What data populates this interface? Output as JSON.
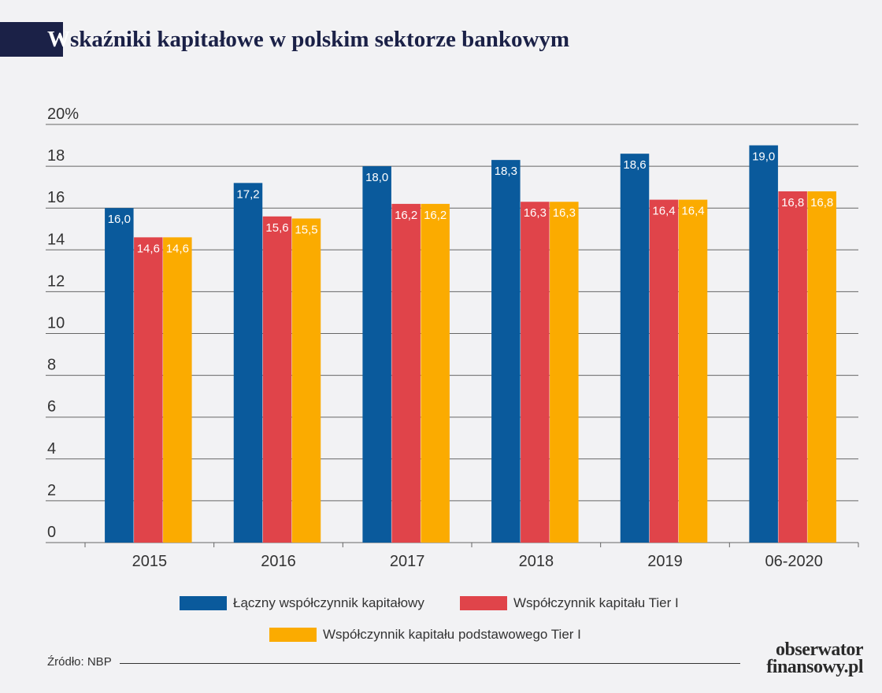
{
  "title_first": "W",
  "title_rest": "skaźniki kapitałowe w polskim sektorze bankowym",
  "source": "Źródło: NBP",
  "logo": {
    "line1": "obserwator",
    "line2": "finansowy.pl"
  },
  "colors": {
    "blue": "#0a5a9c",
    "red": "#e0444a",
    "orange": "#fbab00"
  },
  "chart_data": {
    "type": "bar",
    "title": "Wskaźniki kapitałowe w polskim sektorze bankowym",
    "categories": [
      "2015",
      "2016",
      "2017",
      "2018",
      "2019",
      "06-2020"
    ],
    "series": [
      {
        "name": "Łączny współczynnik kapitałowy",
        "color": "#0a5a9c",
        "values": [
          16.0,
          17.2,
          18.0,
          18.3,
          18.6,
          19.0
        ],
        "labels": [
          "16,0",
          "17,2",
          "18,0",
          "18,3",
          "18,6",
          "19,0"
        ]
      },
      {
        "name": "Współczynnik kapitału Tier I",
        "color": "#e0444a",
        "values": [
          14.6,
          15.6,
          16.2,
          16.3,
          16.4,
          16.8
        ],
        "labels": [
          "14,6",
          "15,6",
          "16,2",
          "16,3",
          "16,4",
          "16,8"
        ]
      },
      {
        "name": "Współczynnik kapitału podstawowego Tier I",
        "color": "#fbab00",
        "values": [
          14.6,
          15.5,
          16.2,
          16.3,
          16.4,
          16.8
        ],
        "labels": [
          "14,6",
          "15,5",
          "16,2",
          "16,3",
          "16,4",
          "16,8"
        ]
      }
    ],
    "yticks": [
      "0",
      "2",
      "4",
      "6",
      "8",
      "10",
      "12",
      "14",
      "16",
      "18",
      "20%"
    ],
    "ylim": [
      0,
      20
    ],
    "grid": true,
    "legend": "bottom"
  }
}
